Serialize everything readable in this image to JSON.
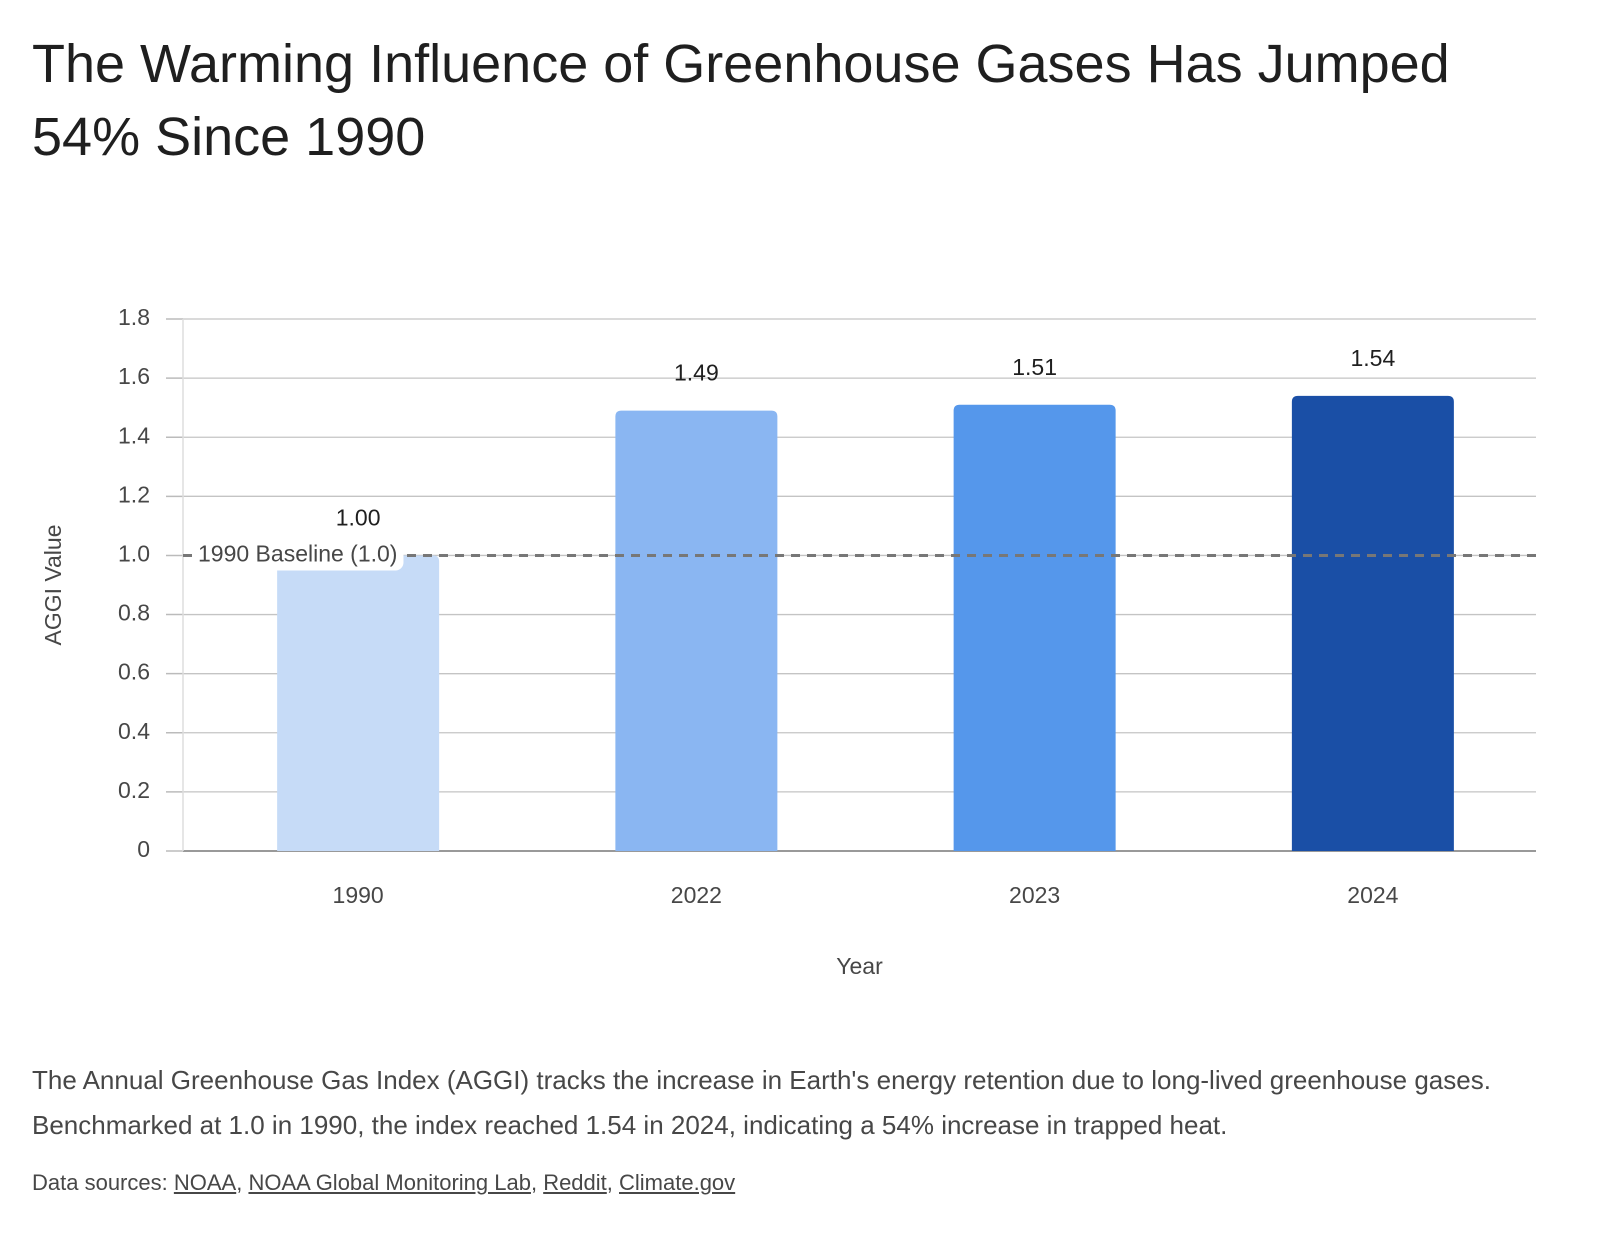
{
  "chart_data": {
    "type": "bar",
    "title": "The Warming Influence of Greenhouse Gases Has Jumped 54% Since 1990",
    "categories": [
      "1990",
      "2022",
      "2023",
      "2024"
    ],
    "values": [
      1.0,
      1.49,
      1.51,
      1.54
    ],
    "value_labels": [
      "1.00",
      "1.49",
      "1.51",
      "1.54"
    ],
    "colors": [
      "#c6dbf7",
      "#8ab6f2",
      "#5597eb",
      "#1a4fa6"
    ],
    "xlabel": "Year",
    "ylabel": "AGGI Value",
    "ylim": [
      0,
      1.8
    ],
    "yticks": [
      0,
      0.2,
      0.4,
      0.6,
      0.8,
      {
        "value": 1,
        "label": "1.0"
      },
      1.2,
      1.4,
      1.6,
      1.8
    ],
    "grid": true,
    "reference_line": {
      "value": 1,
      "label": "1990 Baseline (1.0)"
    }
  },
  "description": "The Annual Greenhouse Gas Index (AGGI) tracks the increase in Earth's energy retention due to long-lived greenhouse gases. Benchmarked at 1.0 in 1990, the index reached 1.54 in 2024, indicating a 54% increase in trapped heat.",
  "sources": {
    "label": "Data sources:",
    "separator": ", ",
    "links": [
      "NOAA",
      "NOAA Global Monitoring Lab",
      "Reddit",
      "Climate.gov"
    ]
  }
}
